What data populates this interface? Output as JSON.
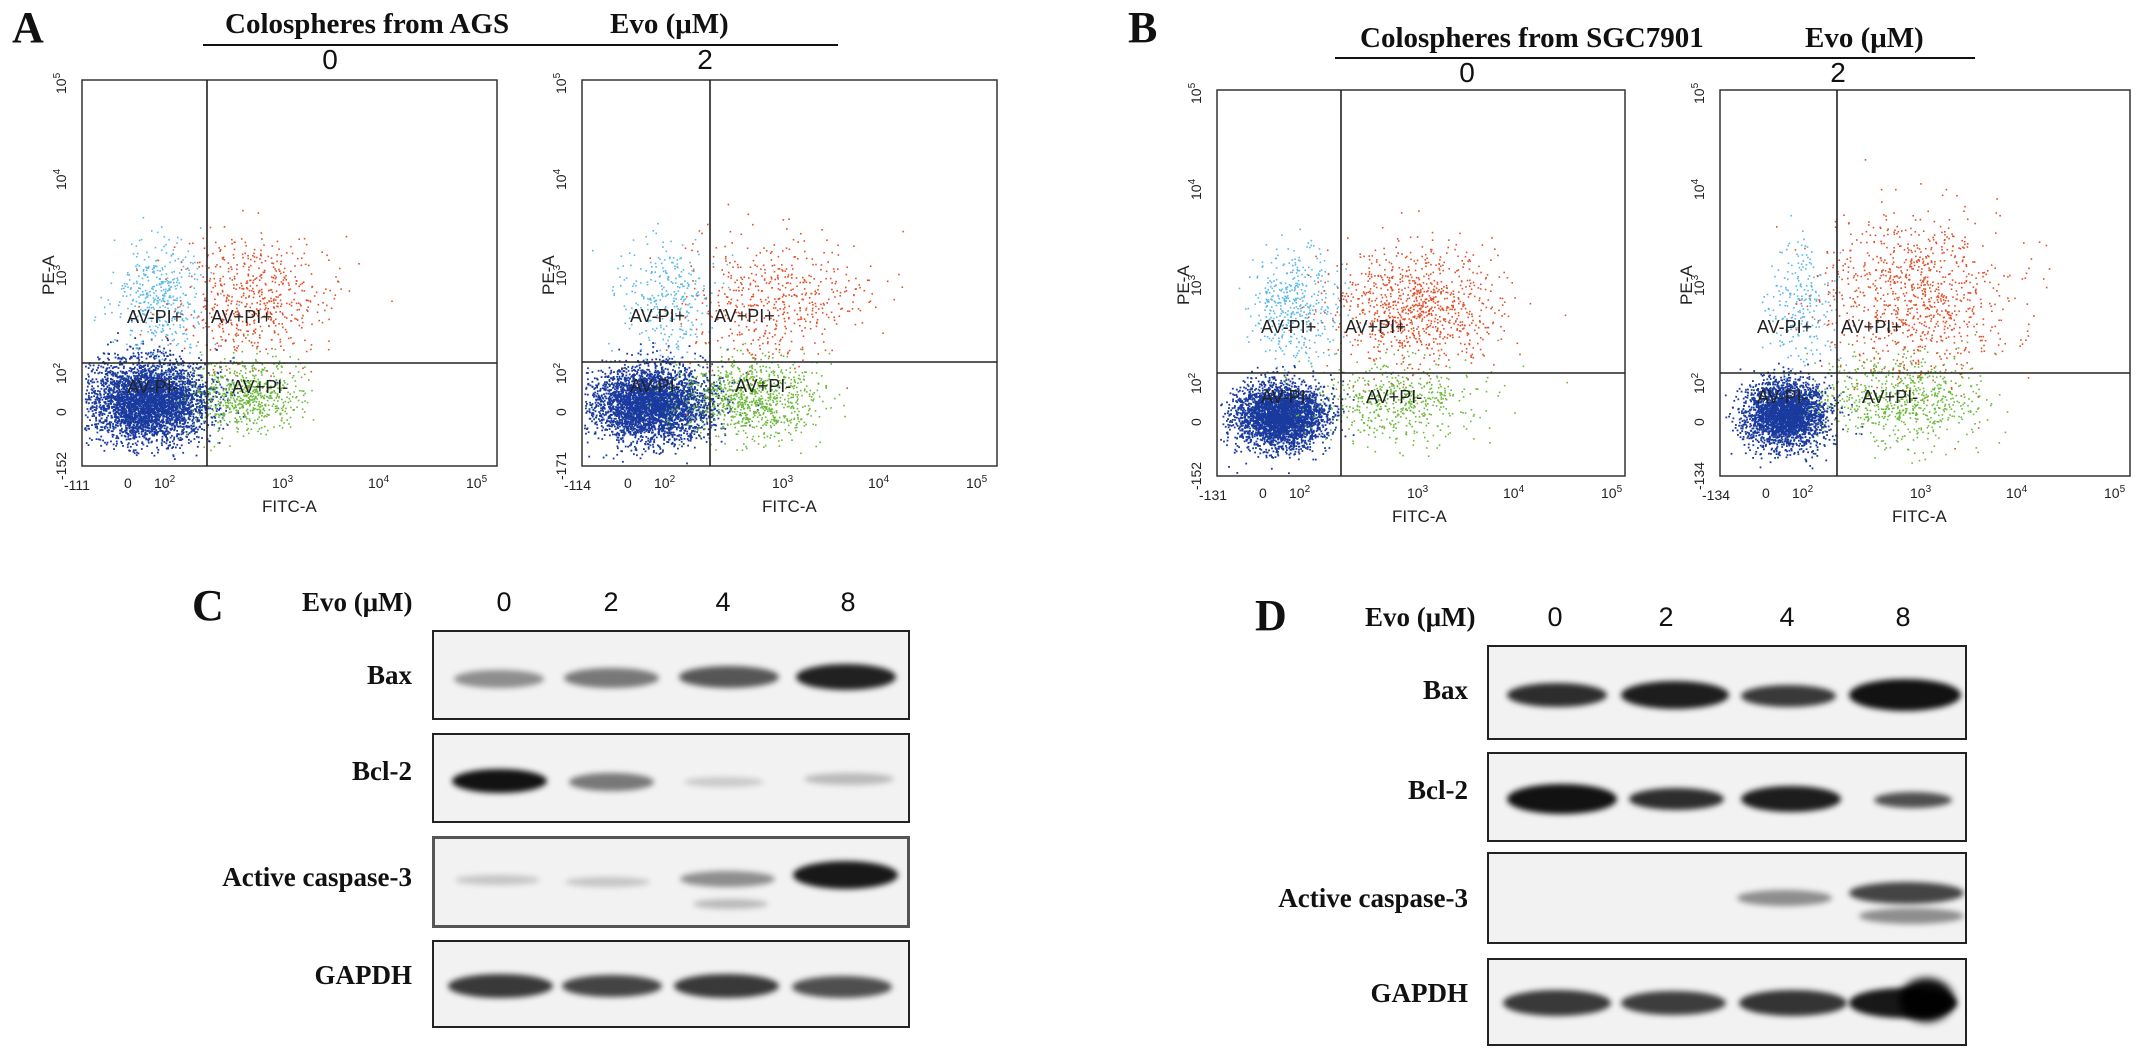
{
  "panels": {
    "A": {
      "letter": "A",
      "header_sample": "Colospheres from AGS",
      "header_evo": "Evo (μM)",
      "doses": [
        "0",
        "2"
      ],
      "plots": [
        {
          "x_min_label": "-111",
          "y_min_label": "-152"
        },
        {
          "x_min_label": "-114",
          "y_min_label": "-171"
        }
      ]
    },
    "B": {
      "letter": "B",
      "header_sample": "Colospheres from SGC7901",
      "header_evo": "Evo (μM)",
      "doses": [
        "0",
        "2"
      ],
      "plots": [
        {
          "x_min_label": "-131",
          "y_min_label": "-152"
        },
        {
          "x_min_label": "-134",
          "y_min_label": "-134"
        }
      ]
    },
    "C": {
      "letter": "C",
      "evo_label": "Evo (μM)",
      "doses": [
        "0",
        "2",
        "4",
        "8"
      ],
      "rows": [
        "Bax",
        "Bcl-2",
        "Active caspase-3",
        "GAPDH"
      ]
    },
    "D": {
      "letter": "D",
      "evo_label": "Evo (μM)",
      "doses": [
        "0",
        "2",
        "4",
        "8"
      ],
      "rows": [
        "Bax",
        "Bcl-2",
        "Active caspase-3",
        "GAPDH"
      ]
    }
  },
  "flow_axes": {
    "x_label": "FITC-A",
    "y_label": "PE-A",
    "x_ticks": [
      "0",
      "10",
      "10",
      "10",
      "10"
    ],
    "x_tick_exps": [
      "",
      "2",
      "3",
      "4",
      "5"
    ],
    "y_ticks": [
      "0",
      "10",
      "10",
      "10",
      "10"
    ],
    "y_tick_exps": [
      "",
      "2",
      "3",
      "4",
      "5"
    ],
    "quadrants": [
      "AV-PI+",
      "AV+PI+",
      "AV-PI-",
      "AV+PI-"
    ]
  },
  "colors": {
    "av_neg_pi_neg": "#1a3a9e",
    "av_pos_pi_neg": "#6cb83a",
    "av_neg_pi_pos": "#5ab8e6",
    "av_pos_pi_pos": "#e0502a"
  }
}
